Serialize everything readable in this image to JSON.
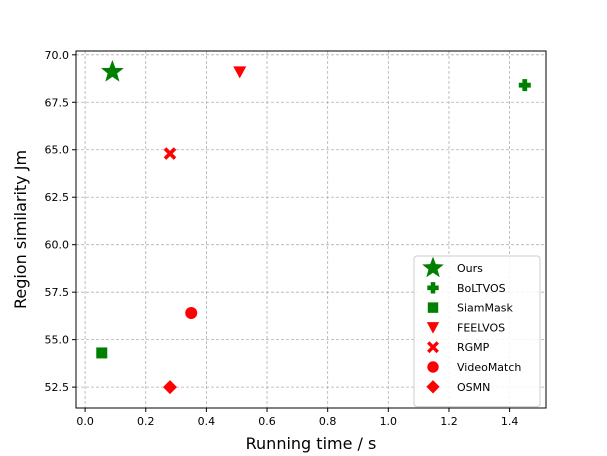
{
  "chart_data": {
    "type": "scatter",
    "xlabel": "Running time / s",
    "ylabel": "Region similarity Jm",
    "xlim": [
      -0.03,
      1.52
    ],
    "ylim": [
      51.4,
      70.2
    ],
    "xticks": [
      0.0,
      0.2,
      0.4,
      0.6,
      0.8,
      1.0,
      1.2,
      1.4
    ],
    "yticks": [
      52.5,
      55.0,
      57.5,
      60.0,
      62.5,
      65.0,
      67.5,
      70.0
    ],
    "xtick_labels": [
      "0.0",
      "0.2",
      "0.4",
      "0.6",
      "0.8",
      "1.0",
      "1.2",
      "1.4"
    ],
    "ytick_labels": [
      "52.5",
      "55.0",
      "57.5",
      "60.0",
      "62.5",
      "65.0",
      "67.5",
      "70.0"
    ],
    "grid": true,
    "legend_position": "bottom-right",
    "series": [
      {
        "name": "Ours",
        "marker": "star",
        "color": "#008000",
        "x": 0.09,
        "y": 69.1
      },
      {
        "name": "BoLTVOS",
        "marker": "plus",
        "color": "#008000",
        "x": 1.45,
        "y": 68.4
      },
      {
        "name": "SiamMask",
        "marker": "square",
        "color": "#008000",
        "x": 0.055,
        "y": 54.3
      },
      {
        "name": "FEELVOS",
        "marker": "triangle-down",
        "color": "#ff0000",
        "x": 0.51,
        "y": 69.1
      },
      {
        "name": "RGMP",
        "marker": "x",
        "color": "#ff0000",
        "x": 0.28,
        "y": 64.8
      },
      {
        "name": "VideoMatch",
        "marker": "circle",
        "color": "#ff0000",
        "x": 0.35,
        "y": 56.4
      },
      {
        "name": "OSMN",
        "marker": "diamond",
        "color": "#ff0000",
        "x": 0.28,
        "y": 52.5
      }
    ]
  }
}
